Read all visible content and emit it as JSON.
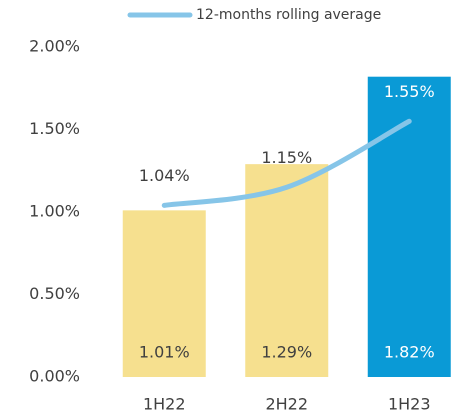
{
  "chart_data": {
    "type": "bar",
    "categories": [
      "1H22",
      "2H22",
      "1H23"
    ],
    "values": [
      1.01,
      1.29,
      1.82
    ],
    "value_labels": [
      "1.01%",
      "1.29%",
      "1.82%"
    ],
    "colors": [
      "#f6e08f",
      "#f6e08f",
      "#0a9ad6"
    ],
    "line": {
      "name": "12-months rolling average",
      "color": "#86c5e8",
      "values": [
        1.04,
        1.15,
        1.55
      ],
      "value_labels": [
        "1.04%",
        "1.15%",
        "1.55%"
      ]
    },
    "ylim": [
      0,
      2
    ],
    "yticks": [
      {
        "value": 0,
        "label": "0.00%"
      },
      {
        "value": 0.5,
        "label": "0.50%"
      },
      {
        "value": 1,
        "label": "1.00%"
      },
      {
        "value": 1.5,
        "label": "1.50%"
      },
      {
        "value": 2,
        "label": "2.00%"
      }
    ],
    "legend": "top"
  }
}
